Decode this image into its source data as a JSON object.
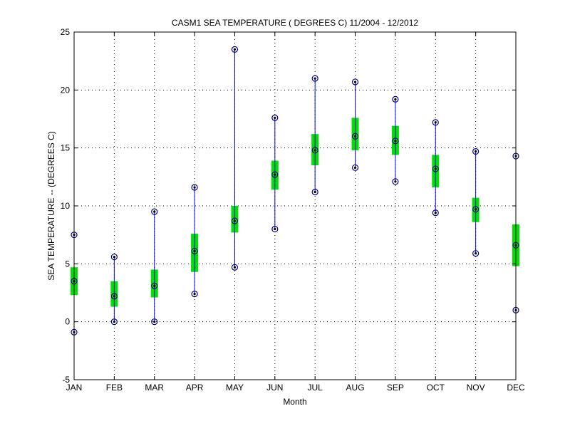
{
  "chart_data": {
    "type": "box",
    "title": "CASM1  SEA TEMPERATURE ( DEGREES C) 11/2004 - 12/2012",
    "xlabel": "Month",
    "ylabel": "SEA TEMPERATURE -- (DEGREES C)",
    "ylim": [
      -5,
      25
    ],
    "yticks": [
      -5,
      0,
      5,
      10,
      15,
      20,
      25
    ],
    "grid": true,
    "categories": [
      "JAN",
      "FEB",
      "MAR",
      "APR",
      "MAY",
      "JUN",
      "JUL",
      "AUG",
      "SEP",
      "OCT",
      "NOV",
      "DEC"
    ],
    "max": [
      7.5,
      5.6,
      9.5,
      11.6,
      23.5,
      17.6,
      21.0,
      20.7,
      19.2,
      17.2,
      14.7,
      14.3
    ],
    "box_upper": [
      4.7,
      3.5,
      4.5,
      7.6,
      10.0,
      13.9,
      16.2,
      17.6,
      16.9,
      14.4,
      10.7,
      8.4
    ],
    "mean": [
      3.5,
      2.2,
      3.1,
      6.1,
      8.7,
      12.7,
      14.8,
      16.0,
      15.6,
      13.2,
      9.7,
      6.6
    ],
    "box_lower": [
      2.3,
      1.3,
      2.1,
      4.3,
      7.7,
      11.4,
      13.5,
      14.8,
      14.4,
      11.6,
      8.6,
      4.8
    ],
    "min": [
      -0.9,
      0.0,
      0.0,
      2.4,
      4.7,
      8.0,
      11.2,
      13.3,
      12.1,
      9.4,
      5.9,
      1.0
    ],
    "colors": {
      "whisker": "#0000ff",
      "box": "#00e000",
      "marker": "#000080",
      "dot": "#000000"
    }
  }
}
